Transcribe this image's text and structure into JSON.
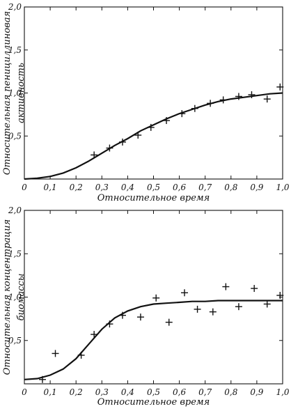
{
  "chart_data": [
    {
      "type": "scatter",
      "xlabel": "Относительное время",
      "ylabel_lines": [
        "Относительная пенициллиновая",
        "активность"
      ],
      "xlim": [
        0,
        1.0
      ],
      "ylim": [
        0,
        2.0
      ],
      "x_ticks": [
        "0",
        "0,1",
        "0,2",
        "0,3",
        "0,4",
        "0,5",
        "0,6",
        "0,7",
        "0,8",
        "0,9",
        "1,0"
      ],
      "y_ticks": [
        "0,5",
        "1,0",
        "1,5",
        "2,0"
      ],
      "grid": false,
      "points": [
        {
          "x": 0.27,
          "y": 0.28
        },
        {
          "x": 0.33,
          "y": 0.36
        },
        {
          "x": 0.38,
          "y": 0.43
        },
        {
          "x": 0.44,
          "y": 0.51
        },
        {
          "x": 0.49,
          "y": 0.6
        },
        {
          "x": 0.55,
          "y": 0.68
        },
        {
          "x": 0.61,
          "y": 0.76
        },
        {
          "x": 0.66,
          "y": 0.82
        },
        {
          "x": 0.72,
          "y": 0.88
        },
        {
          "x": 0.77,
          "y": 0.92
        },
        {
          "x": 0.83,
          "y": 0.96
        },
        {
          "x": 0.88,
          "y": 0.98
        },
        {
          "x": 0.94,
          "y": 0.93
        },
        {
          "x": 0.99,
          "y": 1.07
        }
      ],
      "curve": [
        {
          "x": 0.0,
          "y": 0.0
        },
        {
          "x": 0.05,
          "y": 0.01
        },
        {
          "x": 0.1,
          "y": 0.03
        },
        {
          "x": 0.15,
          "y": 0.07
        },
        {
          "x": 0.2,
          "y": 0.13
        },
        {
          "x": 0.25,
          "y": 0.21
        },
        {
          "x": 0.3,
          "y": 0.3
        },
        {
          "x": 0.35,
          "y": 0.39
        },
        {
          "x": 0.4,
          "y": 0.47
        },
        {
          "x": 0.45,
          "y": 0.56
        },
        {
          "x": 0.5,
          "y": 0.63
        },
        {
          "x": 0.55,
          "y": 0.7
        },
        {
          "x": 0.6,
          "y": 0.76
        },
        {
          "x": 0.65,
          "y": 0.81
        },
        {
          "x": 0.7,
          "y": 0.86
        },
        {
          "x": 0.75,
          "y": 0.9
        },
        {
          "x": 0.8,
          "y": 0.93
        },
        {
          "x": 0.85,
          "y": 0.95
        },
        {
          "x": 0.9,
          "y": 0.97
        },
        {
          "x": 0.95,
          "y": 0.99
        },
        {
          "x": 1.0,
          "y": 1.0
        }
      ]
    },
    {
      "type": "scatter",
      "xlabel": "Относительное время",
      "ylabel_lines": [
        "Относительная концентрация",
        "биомассы"
      ],
      "xlim": [
        0,
        1.0
      ],
      "ylim": [
        0,
        2.0
      ],
      "x_ticks": [
        "0",
        "0,1",
        "0,2",
        "0,3",
        "0,4",
        "0,5",
        "0,6",
        "0,7",
        "0,8",
        "0,9",
        "1,0"
      ],
      "y_ticks": [
        "0,5",
        "1,0",
        "1,5",
        "2,0"
      ],
      "grid": false,
      "points": [
        {
          "x": 0.07,
          "y": 0.05
        },
        {
          "x": 0.12,
          "y": 0.35
        },
        {
          "x": 0.22,
          "y": 0.33
        },
        {
          "x": 0.27,
          "y": 0.57
        },
        {
          "x": 0.33,
          "y": 0.69
        },
        {
          "x": 0.38,
          "y": 0.79
        },
        {
          "x": 0.45,
          "y": 0.77
        },
        {
          "x": 0.51,
          "y": 0.99
        },
        {
          "x": 0.56,
          "y": 0.71
        },
        {
          "x": 0.62,
          "y": 1.05
        },
        {
          "x": 0.67,
          "y": 0.86
        },
        {
          "x": 0.73,
          "y": 0.83
        },
        {
          "x": 0.78,
          "y": 1.12
        },
        {
          "x": 0.83,
          "y": 0.89
        },
        {
          "x": 0.89,
          "y": 1.1
        },
        {
          "x": 0.94,
          "y": 0.92
        },
        {
          "x": 0.99,
          "y": 1.02
        }
      ],
      "curve": [
        {
          "x": 0.0,
          "y": 0.05
        },
        {
          "x": 0.05,
          "y": 0.06
        },
        {
          "x": 0.1,
          "y": 0.1
        },
        {
          "x": 0.15,
          "y": 0.17
        },
        {
          "x": 0.2,
          "y": 0.29
        },
        {
          "x": 0.25,
          "y": 0.46
        },
        {
          "x": 0.3,
          "y": 0.63
        },
        {
          "x": 0.35,
          "y": 0.76
        },
        {
          "x": 0.4,
          "y": 0.84
        },
        {
          "x": 0.45,
          "y": 0.89
        },
        {
          "x": 0.5,
          "y": 0.92
        },
        {
          "x": 0.55,
          "y": 0.93
        },
        {
          "x": 0.6,
          "y": 0.94
        },
        {
          "x": 0.65,
          "y": 0.95
        },
        {
          "x": 0.7,
          "y": 0.95
        },
        {
          "x": 0.75,
          "y": 0.96
        },
        {
          "x": 0.8,
          "y": 0.96
        },
        {
          "x": 0.85,
          "y": 0.96
        },
        {
          "x": 0.9,
          "y": 0.96
        },
        {
          "x": 0.95,
          "y": 0.96
        },
        {
          "x": 1.0,
          "y": 0.96
        }
      ]
    }
  ]
}
